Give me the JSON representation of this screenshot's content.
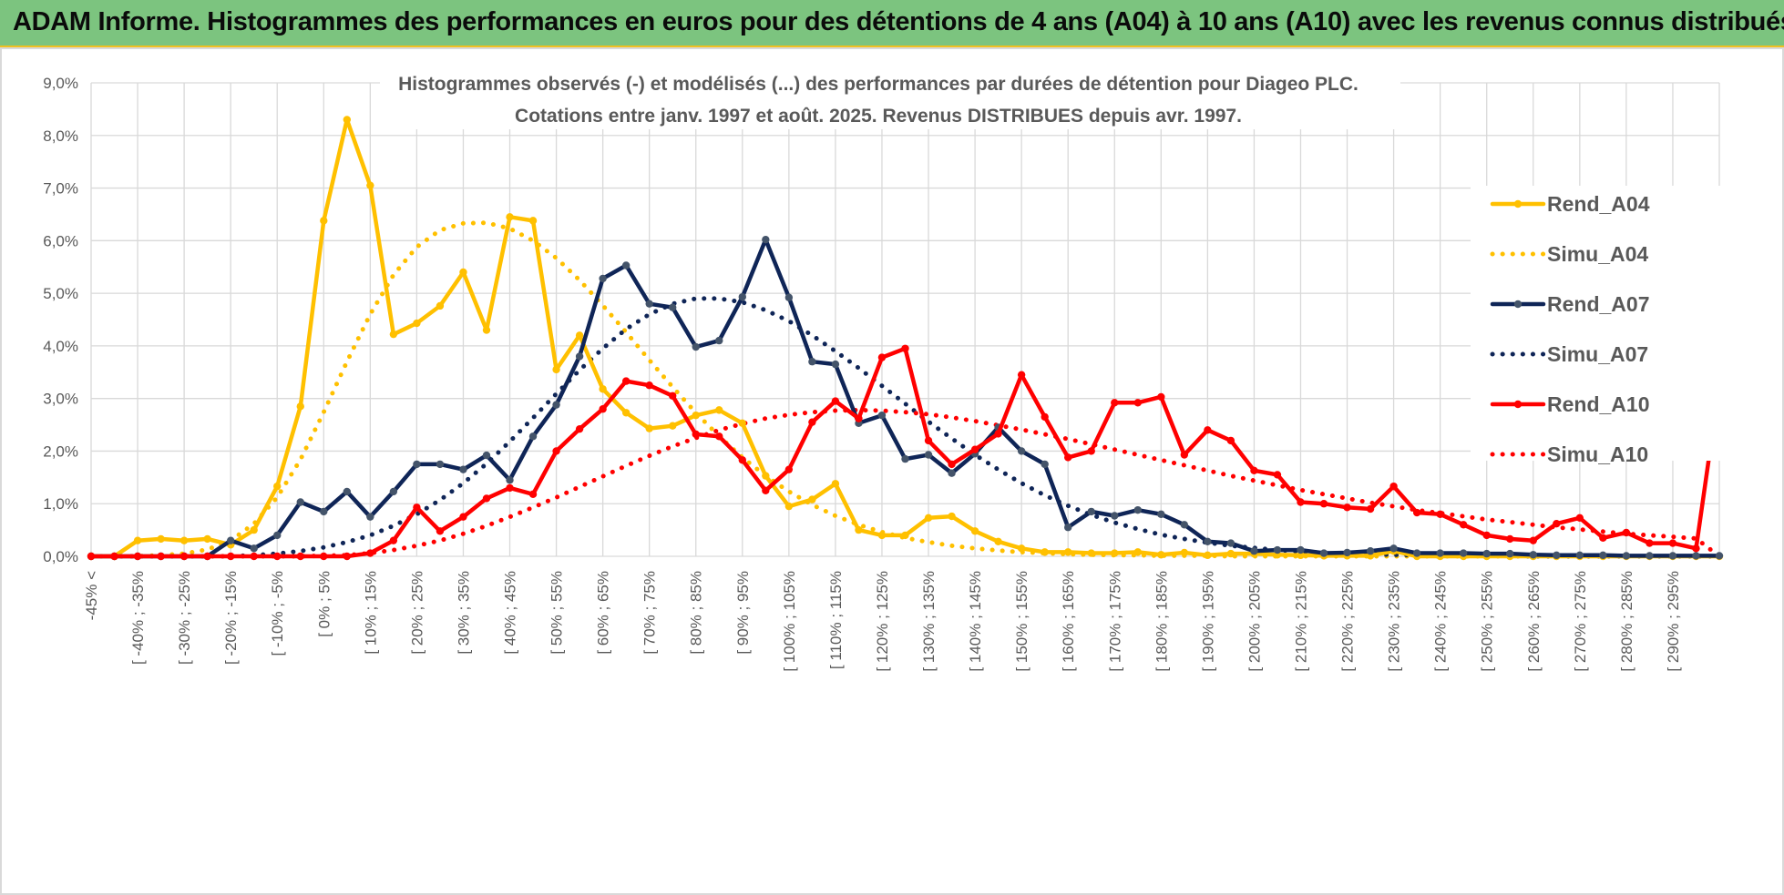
{
  "banner": {
    "title": "ADAM Informe. Histogrammes des performances en euros pour des détentions de 4 ans (A04) à 10 ans (A10) avec les revenus connus distribués",
    "color": "#7cc47f"
  },
  "chart_data": {
    "type": "line",
    "title_line1": "Histogrammes observés (-) et modélisés (...) des performances par durées de détention pour Diageo PLC.",
    "title_line2": "Cotations entre janv. 1997 et août. 2025. Revenus DISTRIBUES depuis avr. 1997.",
    "ylim": [
      0,
      9
    ],
    "y_ticks": [
      "0,0%",
      "1,0%",
      "2,0%",
      "3,0%",
      "4,0%",
      "5,0%",
      "6,0%",
      "7,0%",
      "8,0%",
      "9,0%"
    ],
    "grid": true,
    "legend_position": "right",
    "x_labels": [
      "-45% <",
      "[ -40% ; -35%",
      "[ -30% ; -25%",
      "[ -20% ; -15%",
      "[ -10% ; -5%",
      "[ 0% ; 5%",
      "[ 10% ; 15%",
      "[ 20% ; 25%",
      "[ 30% ; 35%",
      "[ 40% ; 45%",
      "[ 50% ; 55%",
      "[ 60% ; 65%",
      "[ 70% ; 75%",
      "[ 80% ; 85%",
      "[ 90% ; 95%",
      "[ 100% ; 105%",
      "[ 110% ; 115%",
      "[ 120% ; 125%",
      "[ 130% ; 135%",
      "[ 140% ; 145%",
      "[ 150% ; 155%",
      "[ 160% ; 165%",
      "[ 170% ; 175%",
      "[ 180% ; 185%",
      "[ 190% ; 195%",
      "[ 200% ; 205%",
      "[ 210% ; 215%",
      "[ 220% ; 225%",
      "[ 230% ; 235%",
      "[ 240% ; 245%",
      "[ 250% ; 255%",
      "[ 260% ; 265%",
      "[ 270% ; 275%",
      "[ 280% ; 285%",
      "[ 290% ; 295%"
    ],
    "series": [
      {
        "name": "Rend_A04",
        "color": "#ffc000",
        "style": "solid",
        "markers": true,
        "values": [
          0,
          0,
          0.3,
          0.33,
          0.3,
          0.33,
          0.22,
          0.5,
          1.33,
          2.85,
          6.38,
          8.3,
          7.05,
          4.22,
          4.43,
          4.76,
          5.4,
          4.3,
          6.45,
          6.38,
          3.55,
          4.2,
          3.18,
          2.73,
          2.43,
          2.48,
          2.68,
          2.78,
          2.53,
          1.53,
          0.95,
          1.08,
          1.38,
          0.5,
          0.4,
          0.4,
          0.73,
          0.76,
          0.48,
          0.28,
          0.15,
          0.08,
          0.08,
          0.06,
          0.06,
          0.08,
          0.03,
          0.07,
          0.02,
          0.05,
          0.05,
          0.03,
          0.02,
          0.01,
          0.01,
          0.01,
          0.1,
          0.0,
          0.0,
          0.0,
          0.0,
          0.0,
          0.0,
          0.0,
          0.0,
          0.0,
          0.0,
          0.0,
          0.0,
          0.0,
          0.0
        ]
      },
      {
        "name": "Simu_A04",
        "color": "#ffc000",
        "style": "dotted",
        "markers": false,
        "values": [
          0.0,
          0.0,
          0.0,
          0.02,
          0.05,
          0.13,
          0.3,
          0.62,
          1.12,
          1.84,
          2.74,
          3.7,
          4.6,
          5.35,
          5.88,
          6.2,
          6.33,
          6.34,
          6.23,
          6.0,
          5.67,
          5.25,
          4.77,
          4.26,
          3.73,
          3.22,
          2.73,
          2.28,
          1.88,
          1.53,
          1.23,
          0.98,
          0.77,
          0.6,
          0.46,
          0.35,
          0.27,
          0.2,
          0.15,
          0.11,
          0.08,
          0.06,
          0.04,
          0.03,
          0.02,
          0.02,
          0.01,
          0.01,
          0.01,
          0.0,
          0.0,
          0.0,
          0.0,
          0.0,
          0.0,
          0.0,
          0.0,
          0.0,
          0.0,
          0.0,
          0.0,
          0.0,
          0.0,
          0.0,
          0.0,
          0.0,
          0.0,
          0.0,
          0.0,
          0.0,
          0.0
        ]
      },
      {
        "name": "Rend_A07",
        "color": "#0f2557",
        "style": "solid",
        "markers": true,
        "values": [
          0,
          0,
          0,
          0,
          0,
          0.0,
          0.3,
          0.15,
          0.4,
          1.03,
          0.85,
          1.23,
          0.75,
          1.23,
          1.75,
          1.75,
          1.65,
          1.92,
          1.45,
          2.28,
          2.88,
          3.8,
          5.28,
          5.53,
          4.8,
          4.73,
          3.98,
          4.1,
          4.93,
          6.02,
          4.92,
          3.7,
          3.65,
          2.53,
          2.68,
          1.85,
          1.93,
          1.58,
          1.95,
          2.45,
          2.0,
          1.75,
          0.55,
          0.85,
          0.77,
          0.88,
          0.8,
          0.6,
          0.28,
          0.25,
          0.1,
          0.12,
          0.12,
          0.06,
          0.07,
          0.1,
          0.15,
          0.06,
          0.06,
          0.06,
          0.05,
          0.05,
          0.03,
          0.02,
          0.02,
          0.02,
          0.01,
          0.01,
          0.01,
          0.01,
          0.01
        ]
      },
      {
        "name": "Simu_A07",
        "color": "#0f2557",
        "style": "dotted",
        "markers": false,
        "values": [
          0.0,
          0.0,
          0.0,
          0.0,
          0.0,
          0.0,
          0.0,
          0.02,
          0.05,
          0.1,
          0.17,
          0.27,
          0.4,
          0.58,
          0.8,
          1.07,
          1.39,
          1.76,
          2.18,
          2.63,
          3.09,
          3.54,
          3.95,
          4.32,
          4.6,
          4.8,
          4.9,
          4.9,
          4.83,
          4.68,
          4.47,
          4.2,
          3.9,
          3.58,
          3.24,
          2.9,
          2.56,
          2.24,
          1.93,
          1.65,
          1.39,
          1.16,
          0.96,
          0.79,
          0.64,
          0.52,
          0.41,
          0.33,
          0.26,
          0.2,
          0.16,
          0.12,
          0.09,
          0.07,
          0.05,
          0.04,
          0.03,
          0.02,
          0.02,
          0.01,
          0.01,
          0.01,
          0.0,
          0.0,
          0.0,
          0.0,
          0.0,
          0.0,
          0.0,
          0.0,
          0.0
        ]
      },
      {
        "name": "Rend_A10",
        "color": "#ff0000",
        "style": "solid",
        "markers": true,
        "values": [
          0,
          0,
          0,
          0,
          0,
          0,
          0,
          0,
          0,
          0,
          0,
          0,
          0.06,
          0.3,
          0.93,
          0.48,
          0.75,
          1.1,
          1.3,
          1.18,
          2.0,
          2.42,
          2.8,
          3.33,
          3.25,
          3.05,
          2.32,
          2.28,
          1.83,
          1.25,
          1.65,
          2.55,
          2.95,
          2.62,
          3.78,
          3.95,
          2.2,
          1.75,
          2.03,
          2.33,
          3.45,
          2.65,
          1.88,
          2.0,
          2.92,
          2.92,
          3.03,
          1.93,
          2.4,
          2.2,
          1.63,
          1.55,
          1.03,
          1.0,
          0.93,
          0.9,
          1.33,
          0.83,
          0.8,
          0.6,
          0.4,
          0.33,
          0.3,
          0.62,
          0.73,
          0.35,
          0.45,
          0.25,
          0.25,
          0.15,
          3.25
        ]
      },
      {
        "name": "Simu_A10",
        "color": "#ff0000",
        "style": "dotted",
        "markers": false,
        "values": [
          0.0,
          0.0,
          0.0,
          0.0,
          0.0,
          0.0,
          0.0,
          0.0,
          0.0,
          0.0,
          0.01,
          0.02,
          0.06,
          0.12,
          0.2,
          0.3,
          0.43,
          0.58,
          0.75,
          0.93,
          1.12,
          1.32,
          1.52,
          1.72,
          1.91,
          2.09,
          2.25,
          2.4,
          2.52,
          2.62,
          2.69,
          2.74,
          2.77,
          2.78,
          2.77,
          2.74,
          2.7,
          2.64,
          2.57,
          2.49,
          2.41,
          2.32,
          2.23,
          2.13,
          2.03,
          1.93,
          1.83,
          1.73,
          1.63,
          1.53,
          1.44,
          1.35,
          1.26,
          1.18,
          1.1,
          1.02,
          0.95,
          0.88,
          0.82,
          0.76,
          0.7,
          0.65,
          0.6,
          0.55,
          0.51,
          0.47,
          0.43,
          0.4,
          0.37,
          0.34,
          0.0
        ]
      }
    ]
  }
}
